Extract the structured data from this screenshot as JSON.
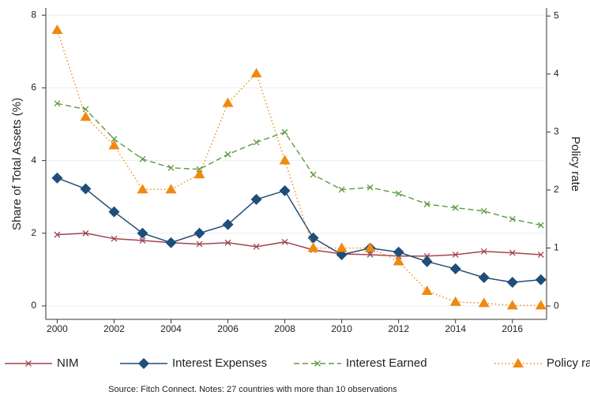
{
  "chart_data": {
    "type": "line",
    "x": [
      2000,
      2001,
      2002,
      2003,
      2004,
      2005,
      2006,
      2007,
      2008,
      2009,
      2010,
      2011,
      2012,
      2013,
      2014,
      2015,
      2016,
      2017
    ],
    "xlim": [
      1999.6,
      2017.2
    ],
    "xticks": [
      2000,
      2002,
      2004,
      2006,
      2008,
      2010,
      2012,
      2014,
      2016
    ],
    "ylabel": "Share of Total Assets (%)",
    "ylim": [
      -0.37,
      8.2
    ],
    "yticks": [
      0,
      2,
      4,
      6,
      8
    ],
    "y2label": "Policy rate",
    "y2lim": [
      -0.23,
      5.14
    ],
    "y2ticks": [
      0,
      1,
      2,
      3,
      4,
      5
    ],
    "grid": true,
    "series": [
      {
        "name": "NIM",
        "color": "#a3444f",
        "marker": "x",
        "line_style": "solid",
        "values": [
          1.96,
          2.0,
          1.85,
          1.8,
          1.74,
          1.7,
          1.74,
          1.63,
          1.76,
          1.54,
          1.43,
          1.41,
          1.37,
          1.37,
          1.41,
          1.5,
          1.46,
          1.41
        ]
      },
      {
        "name": "Interest Expenses",
        "color": "#1f4e79",
        "marker": "diamond",
        "line_style": "solid",
        "values": [
          3.52,
          3.22,
          2.59,
          2.0,
          1.74,
          2.0,
          2.24,
          2.93,
          3.17,
          1.87,
          1.41,
          1.59,
          1.48,
          1.22,
          1.02,
          0.78,
          0.65,
          0.72
        ]
      },
      {
        "name": "Interest Earned",
        "color": "#5c9a3e",
        "marker": "x",
        "line_style": "dash",
        "values": [
          5.57,
          5.41,
          4.59,
          4.04,
          3.8,
          3.76,
          4.17,
          4.5,
          4.78,
          3.61,
          3.2,
          3.26,
          3.09,
          2.8,
          2.7,
          2.61,
          2.39,
          2.22
        ]
      },
      {
        "name": "Policy rate",
        "color": "#f0890f",
        "marker": "triangle",
        "line_style": "dot",
        "axis": "y2",
        "values": [
          4.76,
          3.26,
          2.77,
          2.01,
          2.01,
          2.27,
          3.5,
          4.01,
          2.51,
          1.0,
          1.0,
          1.0,
          0.77,
          0.26,
          0.07,
          0.05,
          0.01,
          0.01
        ]
      }
    ],
    "note": "Source: Fitch Connect. Notes: 27 countries with more than 10 observations"
  }
}
